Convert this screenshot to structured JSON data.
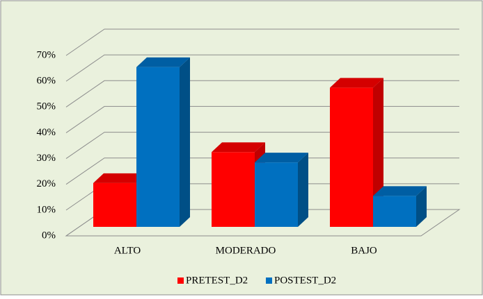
{
  "chart_data": {
    "type": "bar3d",
    "categories": [
      "ALTO",
      "MODERADO",
      "BAJO"
    ],
    "series": [
      {
        "name": "PRETEST_D2",
        "color": "#ff0000",
        "values": [
          17,
          29,
          54
        ]
      },
      {
        "name": "POSTEST_D2",
        "color": "#0070c0",
        "values": [
          62,
          25,
          12
        ]
      }
    ],
    "ylim": [
      0,
      70
    ],
    "yticks": [
      {
        "value": 0,
        "label": "0%"
      },
      {
        "value": 10,
        "label": "10%"
      },
      {
        "value": 20,
        "label": "20%"
      },
      {
        "value": 30,
        "label": "30%"
      },
      {
        "value": 40,
        "label": "40%"
      },
      {
        "value": 50,
        "label": "50%"
      },
      {
        "value": 60,
        "label": "60%"
      },
      {
        "value": 70,
        "label": "70%"
      }
    ],
    "grid": true,
    "legend": "bottom"
  }
}
